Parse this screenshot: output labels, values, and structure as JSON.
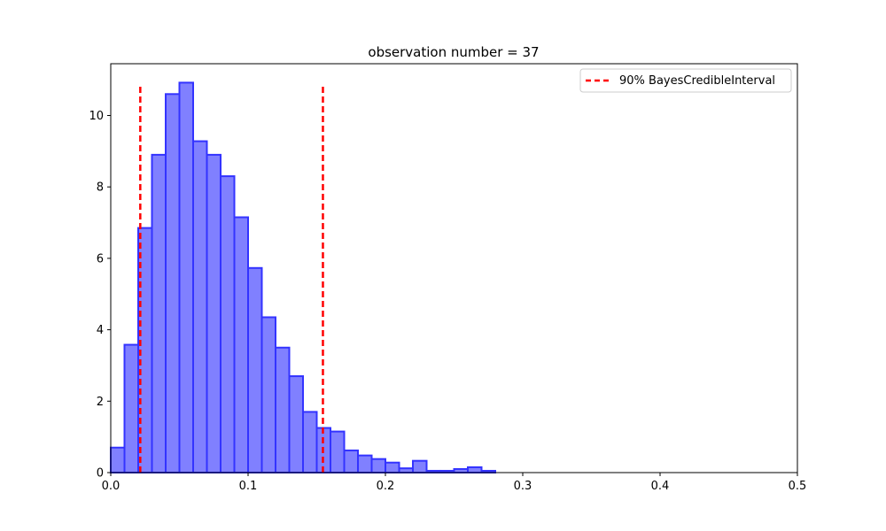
{
  "chart_data": {
    "type": "bar",
    "title": "observation number = 37",
    "xlabel": "",
    "ylabel": "",
    "xlim": [
      0,
      0.5
    ],
    "ylim": [
      0,
      11.45
    ],
    "grid": false,
    "legend_placement": "top-right",
    "bin_width": 0.01,
    "bins": [
      {
        "x0": 0.0,
        "x1": 0.01,
        "value": 0.7
      },
      {
        "x0": 0.01,
        "x1": 0.02,
        "value": 3.58
      },
      {
        "x0": 0.02,
        "x1": 0.03,
        "value": 6.85
      },
      {
        "x0": 0.03,
        "x1": 0.04,
        "value": 8.9
      },
      {
        "x0": 0.04,
        "x1": 0.05,
        "value": 10.6
      },
      {
        "x0": 0.05,
        "x1": 0.06,
        "value": 10.92
      },
      {
        "x0": 0.06,
        "x1": 0.07,
        "value": 9.28
      },
      {
        "x0": 0.07,
        "x1": 0.08,
        "value": 8.9
      },
      {
        "x0": 0.08,
        "x1": 0.09,
        "value": 8.3
      },
      {
        "x0": 0.09,
        "x1": 0.1,
        "value": 7.15
      },
      {
        "x0": 0.1,
        "x1": 0.11,
        "value": 5.73
      },
      {
        "x0": 0.11,
        "x1": 0.12,
        "value": 4.35
      },
      {
        "x0": 0.12,
        "x1": 0.13,
        "value": 3.5
      },
      {
        "x0": 0.13,
        "x1": 0.14,
        "value": 2.7
      },
      {
        "x0": 0.14,
        "x1": 0.15,
        "value": 1.7
      },
      {
        "x0": 0.15,
        "x1": 0.16,
        "value": 1.25
      },
      {
        "x0": 0.16,
        "x1": 0.17,
        "value": 1.15
      },
      {
        "x0": 0.17,
        "x1": 0.18,
        "value": 0.62
      },
      {
        "x0": 0.18,
        "x1": 0.19,
        "value": 0.48
      },
      {
        "x0": 0.19,
        "x1": 0.2,
        "value": 0.38
      },
      {
        "x0": 0.2,
        "x1": 0.21,
        "value": 0.28
      },
      {
        "x0": 0.21,
        "x1": 0.22,
        "value": 0.12
      },
      {
        "x0": 0.22,
        "x1": 0.23,
        "value": 0.33
      },
      {
        "x0": 0.23,
        "x1": 0.24,
        "value": 0.05
      },
      {
        "x0": 0.24,
        "x1": 0.25,
        "value": 0.05
      },
      {
        "x0": 0.25,
        "x1": 0.26,
        "value": 0.1
      },
      {
        "x0": 0.26,
        "x1": 0.27,
        "value": 0.15
      },
      {
        "x0": 0.27,
        "x1": 0.28,
        "value": 0.05
      }
    ],
    "credible_interval": {
      "label": "90% BayesCredibleInterval",
      "lower": 0.0215,
      "upper": 0.1545,
      "y_top": 10.85,
      "color": "#ff0000"
    },
    "x_ticks": [
      {
        "value": 0.0,
        "label": "0.0"
      },
      {
        "value": 0.1,
        "label": "0.1"
      },
      {
        "value": 0.2,
        "label": "0.2"
      },
      {
        "value": 0.3,
        "label": "0.3"
      },
      {
        "value": 0.4,
        "label": "0.4"
      },
      {
        "value": 0.5,
        "label": "0.5"
      }
    ],
    "y_ticks": [
      {
        "value": 0,
        "label": "0"
      },
      {
        "value": 2,
        "label": "2"
      },
      {
        "value": 4,
        "label": "4"
      },
      {
        "value": 6,
        "label": "6"
      },
      {
        "value": 8,
        "label": "8"
      },
      {
        "value": 10,
        "label": "10"
      }
    ],
    "colors": {
      "bar_fill": "#8080ff",
      "bar_edge": "#3333ff",
      "interval_line": "#ff0000",
      "axes": "#000000"
    }
  }
}
